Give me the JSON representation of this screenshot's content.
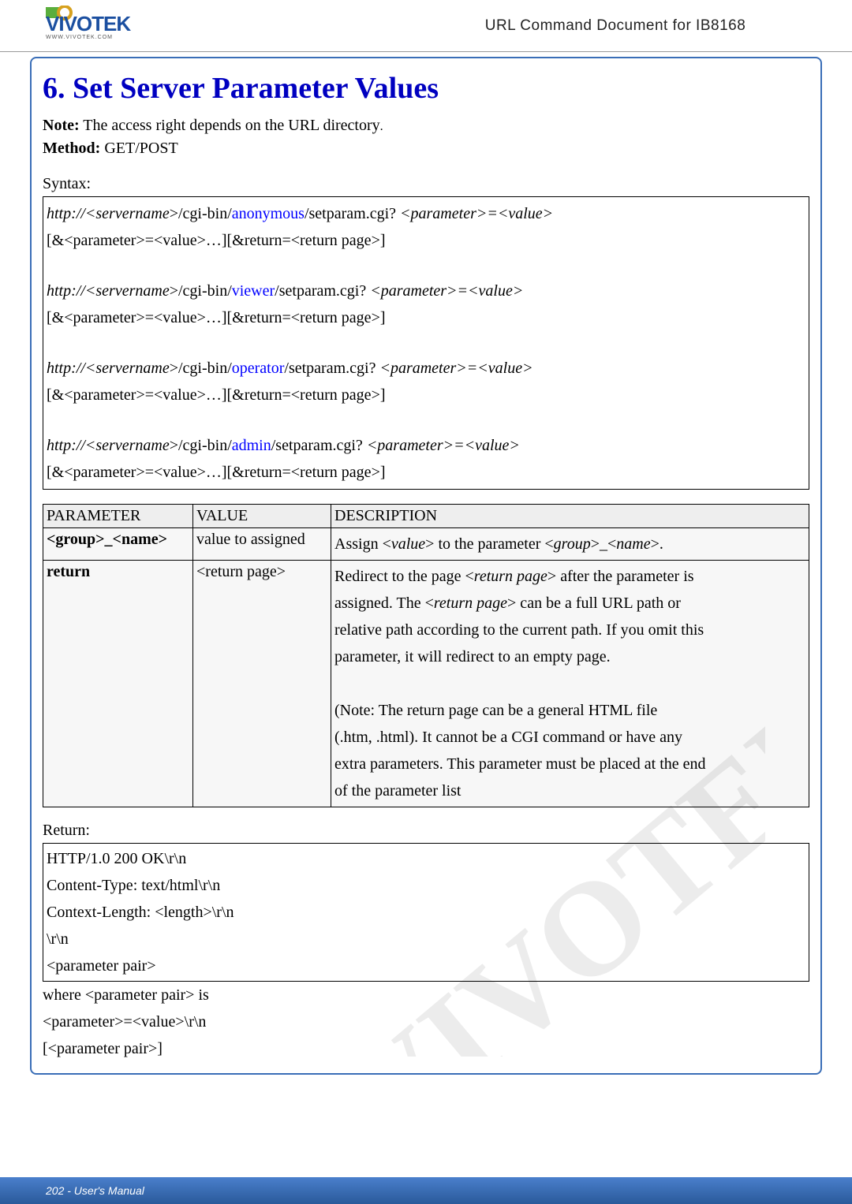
{
  "header": {
    "doc_title": "URL Command Document for IB8168",
    "logo_text": "VIVOTEK",
    "logo_tagline": "www.vivotek.com",
    "logo_colors": {
      "vivo": "#1b4fa0",
      "circle_icon": "#d7a11e",
      "green_sq": "#5aae3c"
    }
  },
  "section": {
    "title": "6. Set Server Parameter Values",
    "note_label": "Note:",
    "note_text": " The access right depends on the URL directory",
    "note_period": ".",
    "method_label": "Method:",
    "method_value": " GET/POST"
  },
  "syntax": {
    "label": "Syntax:",
    "lines": [
      {
        "parts": [
          {
            "t": "http://<",
            "i": true
          },
          {
            "t": "servername",
            "i": true
          },
          {
            "t": ">/cgi-bin/",
            "i": false
          },
          {
            "t": "anonymous",
            "c": "blue"
          },
          {
            "t": "/setparam.cgi? "
          },
          {
            "t": "<parameter>=<value>",
            "i": true
          }
        ]
      },
      {
        "parts": [
          {
            "t": "[&<parameter>=<value>…][&return=<return page>]"
          }
        ]
      },
      {
        "spacer": true
      },
      {
        "parts": [
          {
            "t": "http://<",
            "i": true
          },
          {
            "t": "servername",
            "i": true
          },
          {
            "t": ">/cgi-bin/",
            "i": false
          },
          {
            "t": "viewer",
            "c": "blue"
          },
          {
            "t": "/setparam.cgi? "
          },
          {
            "t": "<parameter>=<value>",
            "i": true
          }
        ]
      },
      {
        "parts": [
          {
            "t": "[&<parameter>=<value>…][&return=<return page>]"
          }
        ]
      },
      {
        "spacer": true
      },
      {
        "parts": [
          {
            "t": "http://<",
            "i": true
          },
          {
            "t": "servername",
            "i": true
          },
          {
            "t": ">/cgi-bin/",
            "i": false
          },
          {
            "t": "operator",
            "c": "blue"
          },
          {
            "t": "/setparam.cgi? "
          },
          {
            "t": "<parameter>=<value>",
            "i": true
          }
        ]
      },
      {
        "parts": [
          {
            "t": "[&<parameter>=<value>…][&return=<return page>]"
          }
        ]
      },
      {
        "spacer": true
      },
      {
        "parts": [
          {
            "t": "http://<",
            "i": true
          },
          {
            "t": "servername",
            "i": true
          },
          {
            "t": ">/cgi-bin/",
            "i": false
          },
          {
            "t": "admin",
            "c": "blue"
          },
          {
            "t": "/setparam.cgi? "
          },
          {
            "t": "<parameter>=<value>",
            "i": true
          }
        ]
      },
      {
        "parts": [
          {
            "t": "[&<parameter>=<value>…][&return=<return page>]"
          }
        ]
      }
    ]
  },
  "param_table": {
    "headers": [
      "PARAMETER",
      "VALUE",
      "DESCRIPTION"
    ],
    "rows": [
      {
        "param_bold": "<group>_<name>",
        "value": "value to assigned",
        "desc": [
          {
            "t": "Assign <"
          },
          {
            "t": "value",
            "i": true
          },
          {
            "t": "> to the parameter <"
          },
          {
            "t": "group",
            "i": true
          },
          {
            "t": ">_<"
          },
          {
            "t": "name",
            "i": true
          },
          {
            "t": ">."
          }
        ]
      },
      {
        "param_bold": "return",
        "value": "<return page>",
        "desc_multi": [
          [
            {
              "t": "Redirect to the page <"
            },
            {
              "t": "return page",
              "i": true
            },
            {
              "t": "> after the parameter is "
            }
          ],
          [
            {
              "t": "assigned. The <"
            },
            {
              "t": "return page",
              "i": true
            },
            {
              "t": "> can be a full URL path or "
            }
          ],
          [
            {
              "t": "relative path according to the current path. If you omit this "
            }
          ],
          [
            {
              "t": "parameter, it will redirect to an empty page."
            }
          ],
          [
            {
              "t": " "
            }
          ],
          [
            {
              "t": "(Note: The return page can be a general HTML file "
            }
          ],
          [
            {
              "t": "(.htm, .html). It cannot be a CGI command or have any "
            }
          ],
          [
            {
              "t": "extra parameters. This parameter must be placed at the end "
            }
          ],
          [
            {
              "t": "of the parameter list"
            }
          ]
        ]
      }
    ]
  },
  "return_block": {
    "label": "Return:",
    "box_lines": [
      "HTTP/1.0 200 OK\\r\\n",
      "Content-Type: text/html\\r\\n",
      "Context-Length: <length>\\r\\n",
      "\\r\\n",
      "<parameter pair>"
    ],
    "after_lines": [
      "where <parameter pair> is",
      "<parameter>=<value>\\r\\n",
      "[<parameter pair>]"
    ]
  },
  "footer": {
    "text": "202 - User's Manual"
  }
}
